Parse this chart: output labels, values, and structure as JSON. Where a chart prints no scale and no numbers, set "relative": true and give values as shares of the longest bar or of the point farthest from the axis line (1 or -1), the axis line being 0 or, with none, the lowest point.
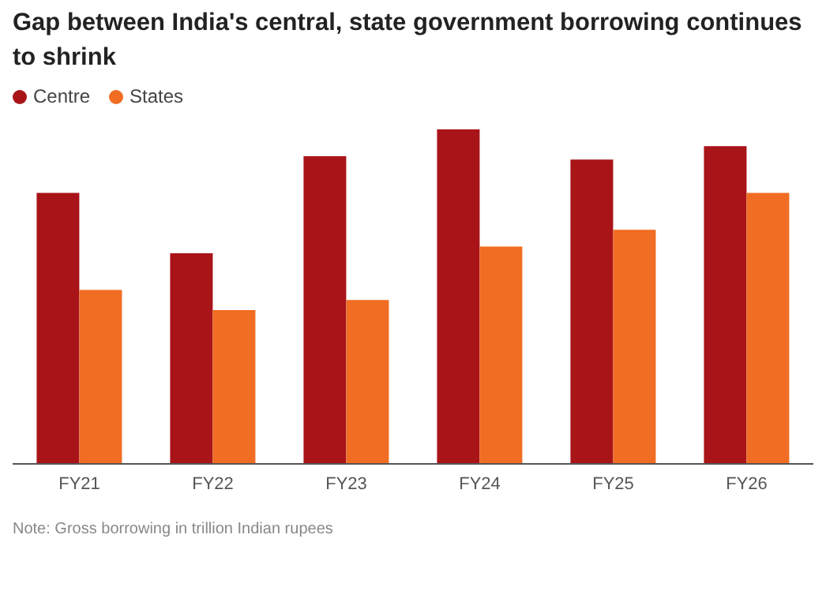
{
  "chart_data": {
    "type": "bar",
    "title": "Gap between India's central, state government borrowing continues to shrink",
    "relative": true,
    "legend": "top left",
    "categories": [
      "FY21",
      "FY22",
      "FY23",
      "FY24",
      "FY25",
      "FY26"
    ],
    "series": [
      {
        "name": "Centre",
        "color": "#a91419",
        "values": [
          0.81,
          0.63,
          0.92,
          1,
          0.91,
          0.95
        ]
      },
      {
        "name": "States",
        "color": "#f06d23",
        "values": [
          0.52,
          0.46,
          0.49,
          0.65,
          0.7,
          0.81
        ]
      }
    ],
    "annotations": [
      "Note: Gross borrowing in trillion Indian rupees"
    ]
  }
}
